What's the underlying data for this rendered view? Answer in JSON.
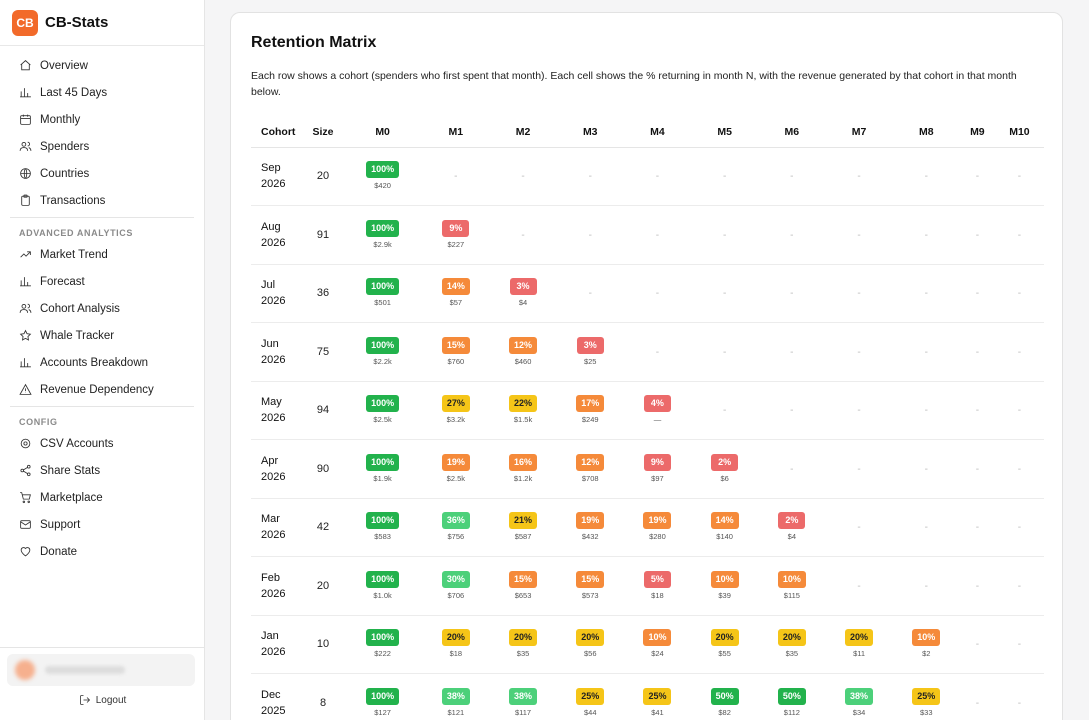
{
  "app": {
    "logo": "CB",
    "name": "CB-Stats"
  },
  "sidebar": {
    "main_items": [
      {
        "label": "Overview",
        "icon": "home-icon"
      },
      {
        "label": "Last 45 Days",
        "icon": "bar-chart-icon"
      },
      {
        "label": "Monthly",
        "icon": "calendar-icon"
      },
      {
        "label": "Spenders",
        "icon": "users-icon"
      },
      {
        "label": "Countries",
        "icon": "globe-icon"
      },
      {
        "label": "Transactions",
        "icon": "clipboard-icon"
      }
    ],
    "advanced_label": "ADVANCED ANALYTICS",
    "advanced_items": [
      {
        "label": "Market Trend",
        "icon": "trend-up-icon"
      },
      {
        "label": "Forecast",
        "icon": "bar-chart-icon"
      },
      {
        "label": "Cohort Analysis",
        "icon": "users-icon"
      },
      {
        "label": "Whale Tracker",
        "icon": "star-icon"
      },
      {
        "label": "Accounts Breakdown",
        "icon": "bar-chart-icon"
      },
      {
        "label": "Revenue Dependency",
        "icon": "warning-icon"
      }
    ],
    "config_label": "CONFIG",
    "config_items": [
      {
        "label": "CSV Accounts",
        "icon": "gear-icon"
      },
      {
        "label": "Share Stats",
        "icon": "share-icon"
      },
      {
        "label": "Marketplace",
        "icon": "cart-icon"
      },
      {
        "label": "Support",
        "icon": "mail-icon"
      },
      {
        "label": "Donate",
        "icon": "heart-icon"
      }
    ],
    "logout_label": "Logout"
  },
  "main": {
    "title": "Retention Matrix",
    "description": "Each row shows a cohort (spenders who first spent that month). Each cell shows the % returning in month N, with the revenue generated by that cohort in that month below.",
    "columns": [
      "Cohort",
      "Size",
      "M0",
      "M1",
      "M2",
      "M3",
      "M4",
      "M5",
      "M6",
      "M7",
      "M8",
      "M9",
      "M10"
    ],
    "empty_mark": "-",
    "colors": {
      "dark_green": "#22b24c",
      "light_green": "#4cd07a",
      "yellow": "#f5c518",
      "orange": "#f58a3a",
      "red": "#ec6a6a"
    },
    "rows": [
      {
        "cohort_month": "Sep",
        "cohort_year": "2026",
        "size": "20",
        "cells": [
          [
            "100%",
            "$420",
            "g-dark"
          ]
        ]
      },
      {
        "cohort_month": "Aug",
        "cohort_year": "2026",
        "size": "91",
        "cells": [
          [
            "100%",
            "$2.9k",
            "g-dark"
          ],
          [
            "9%",
            "$227",
            "red"
          ]
        ]
      },
      {
        "cohort_month": "Jul",
        "cohort_year": "2026",
        "size": "36",
        "cells": [
          [
            "100%",
            "$501",
            "g-dark"
          ],
          [
            "14%",
            "$57",
            "orange"
          ],
          [
            "3%",
            "$4",
            "red"
          ]
        ]
      },
      {
        "cohort_month": "Jun",
        "cohort_year": "2026",
        "size": "75",
        "cells": [
          [
            "100%",
            "$2.2k",
            "g-dark"
          ],
          [
            "15%",
            "$760",
            "orange"
          ],
          [
            "12%",
            "$460",
            "orange"
          ],
          [
            "3%",
            "$25",
            "red"
          ]
        ]
      },
      {
        "cohort_month": "May",
        "cohort_year": "2026",
        "size": "94",
        "cells": [
          [
            "100%",
            "$2.5k",
            "g-dark"
          ],
          [
            "27%",
            "$3.2k",
            "yellow"
          ],
          [
            "22%",
            "$1.5k",
            "yellow"
          ],
          [
            "17%",
            "$249",
            "orange"
          ],
          [
            "4%",
            "—",
            "red"
          ]
        ]
      },
      {
        "cohort_month": "Apr",
        "cohort_year": "2026",
        "size": "90",
        "cells": [
          [
            "100%",
            "$1.9k",
            "g-dark"
          ],
          [
            "19%",
            "$2.5k",
            "orange"
          ],
          [
            "16%",
            "$1.2k",
            "orange"
          ],
          [
            "12%",
            "$708",
            "orange"
          ],
          [
            "9%",
            "$97",
            "red"
          ],
          [
            "2%",
            "$6",
            "red"
          ]
        ]
      },
      {
        "cohort_month": "Mar",
        "cohort_year": "2026",
        "size": "42",
        "cells": [
          [
            "100%",
            "$583",
            "g-dark"
          ],
          [
            "36%",
            "$756",
            "g-light"
          ],
          [
            "21%",
            "$587",
            "yellow"
          ],
          [
            "19%",
            "$432",
            "orange"
          ],
          [
            "19%",
            "$280",
            "orange"
          ],
          [
            "14%",
            "$140",
            "orange"
          ],
          [
            "2%",
            "$4",
            "red"
          ]
        ]
      },
      {
        "cohort_month": "Feb",
        "cohort_year": "2026",
        "size": "20",
        "cells": [
          [
            "100%",
            "$1.0k",
            "g-dark"
          ],
          [
            "30%",
            "$706",
            "g-light"
          ],
          [
            "15%",
            "$653",
            "orange"
          ],
          [
            "15%",
            "$573",
            "orange"
          ],
          [
            "5%",
            "$18",
            "red"
          ],
          [
            "10%",
            "$39",
            "orange"
          ],
          [
            "10%",
            "$115",
            "orange"
          ]
        ]
      },
      {
        "cohort_month": "Jan",
        "cohort_year": "2026",
        "size": "10",
        "cells": [
          [
            "100%",
            "$222",
            "g-dark"
          ],
          [
            "20%",
            "$18",
            "yellow"
          ],
          [
            "20%",
            "$35",
            "yellow"
          ],
          [
            "20%",
            "$56",
            "yellow"
          ],
          [
            "10%",
            "$24",
            "orange"
          ],
          [
            "20%",
            "$55",
            "yellow"
          ],
          [
            "20%",
            "$35",
            "yellow"
          ],
          [
            "20%",
            "$11",
            "yellow"
          ],
          [
            "10%",
            "$2",
            "orange"
          ]
        ]
      },
      {
        "cohort_month": "Dec",
        "cohort_year": "2025",
        "size": "8",
        "cells": [
          [
            "100%",
            "$127",
            "g-dark"
          ],
          [
            "38%",
            "$121",
            "g-light"
          ],
          [
            "38%",
            "$117",
            "g-light"
          ],
          [
            "25%",
            "$44",
            "yellow"
          ],
          [
            "25%",
            "$41",
            "yellow"
          ],
          [
            "50%",
            "$82",
            "g-dark"
          ],
          [
            "50%",
            "$112",
            "g-dark"
          ],
          [
            "38%",
            "$34",
            "g-light"
          ],
          [
            "25%",
            "$33",
            "yellow"
          ]
        ]
      }
    ]
  }
}
